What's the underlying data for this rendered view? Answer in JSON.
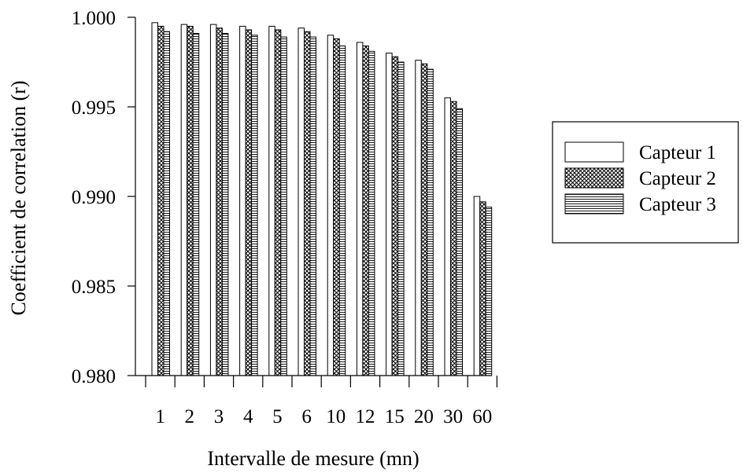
{
  "chart_data": {
    "type": "bar",
    "title": "",
    "xlabel": "Intervalle de mesure (mn)",
    "ylabel": "Coefficient de correlation (r)",
    "categories": [
      "1",
      "2",
      "3",
      "4",
      "5",
      "6",
      "10",
      "12",
      "15",
      "20",
      "30",
      "60"
    ],
    "ylim": [
      0.98,
      1.0
    ],
    "yticks": [
      "0.980",
      "0.985",
      "0.990",
      "0.995",
      "1.000"
    ],
    "grid": false,
    "legend_position": "right",
    "series": [
      {
        "name": "Capteur 1",
        "pattern": "plain",
        "values": [
          0.9997,
          0.9996,
          0.9996,
          0.9995,
          0.9995,
          0.9994,
          0.999,
          0.9986,
          0.998,
          0.9976,
          0.9955,
          0.99
        ]
      },
      {
        "name": "Capteur 2",
        "pattern": "crosshatch",
        "values": [
          0.9995,
          0.9995,
          0.9994,
          0.9993,
          0.9993,
          0.9992,
          0.9988,
          0.9984,
          0.9978,
          0.9974,
          0.9953,
          0.9897
        ]
      },
      {
        "name": "Capteur 3",
        "pattern": "horizontal-lines",
        "values": [
          0.9992,
          0.9991,
          0.9991,
          0.999,
          0.9989,
          0.9989,
          0.9984,
          0.9981,
          0.9975,
          0.9971,
          0.9949,
          0.9894
        ]
      }
    ]
  }
}
